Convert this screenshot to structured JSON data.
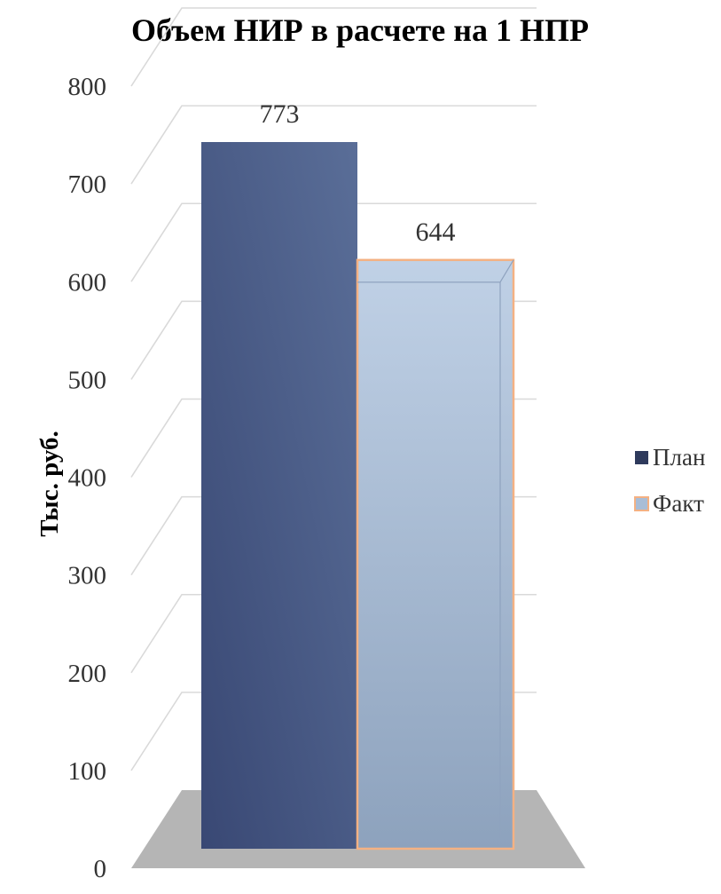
{
  "chart_data": {
    "type": "bar",
    "title": "Объем НИР в расчете на 1 НПР",
    "ylabel": "Тыс. руб.",
    "xlabel": "",
    "ylim": [
      0,
      800
    ],
    "yticks": [
      0,
      100,
      200,
      300,
      400,
      500,
      600,
      700,
      800
    ],
    "grid": true,
    "legend_position": "right",
    "series": [
      {
        "name": "План",
        "values": [
          773
        ],
        "data_label": "773",
        "color": "#4a5f8f"
      },
      {
        "name": "Факт",
        "values": [
          644
        ],
        "data_label": "644",
        "color": "#a9bdd6",
        "border": "#f4b183"
      }
    ],
    "colors": {
      "floor": "#b5b5b5",
      "grid": "#d9d9d9"
    }
  }
}
